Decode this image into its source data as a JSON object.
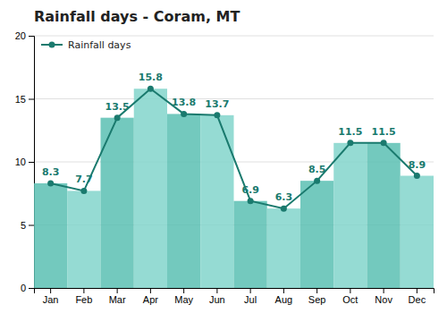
{
  "chart_data": {
    "type": "line",
    "title": "Rainfall days - Coram, MT",
    "categories": [
      "Jan",
      "Feb",
      "Mar",
      "Apr",
      "May",
      "Jun",
      "Jul",
      "Aug",
      "Sep",
      "Oct",
      "Nov",
      "Dec"
    ],
    "series": [
      {
        "name": "Rainfall days",
        "type": "line",
        "color": "#1a7a6e",
        "marker": "circle",
        "values": [
          8.3,
          7.7,
          13.5,
          15.8,
          13.8,
          13.7,
          6.9,
          6.3,
          8.5,
          11.5,
          11.5,
          8.9
        ]
      }
    ],
    "colors": [
      "#5bbfb3",
      "#82d5cb",
      "#5bbfb3",
      "#82d5cb",
      "#5bbfb3",
      "#82d5cb",
      "#5bbfb3",
      "#82d5cb",
      "#5bbfb3",
      "#82d5cb",
      "#5bbfb3",
      "#82d5cb"
    ],
    "ylim": [
      0,
      20
    ],
    "yticks": [
      0,
      5,
      10,
      15,
      20
    ],
    "grid": true,
    "legend": "upper left",
    "data_labels": true
  }
}
